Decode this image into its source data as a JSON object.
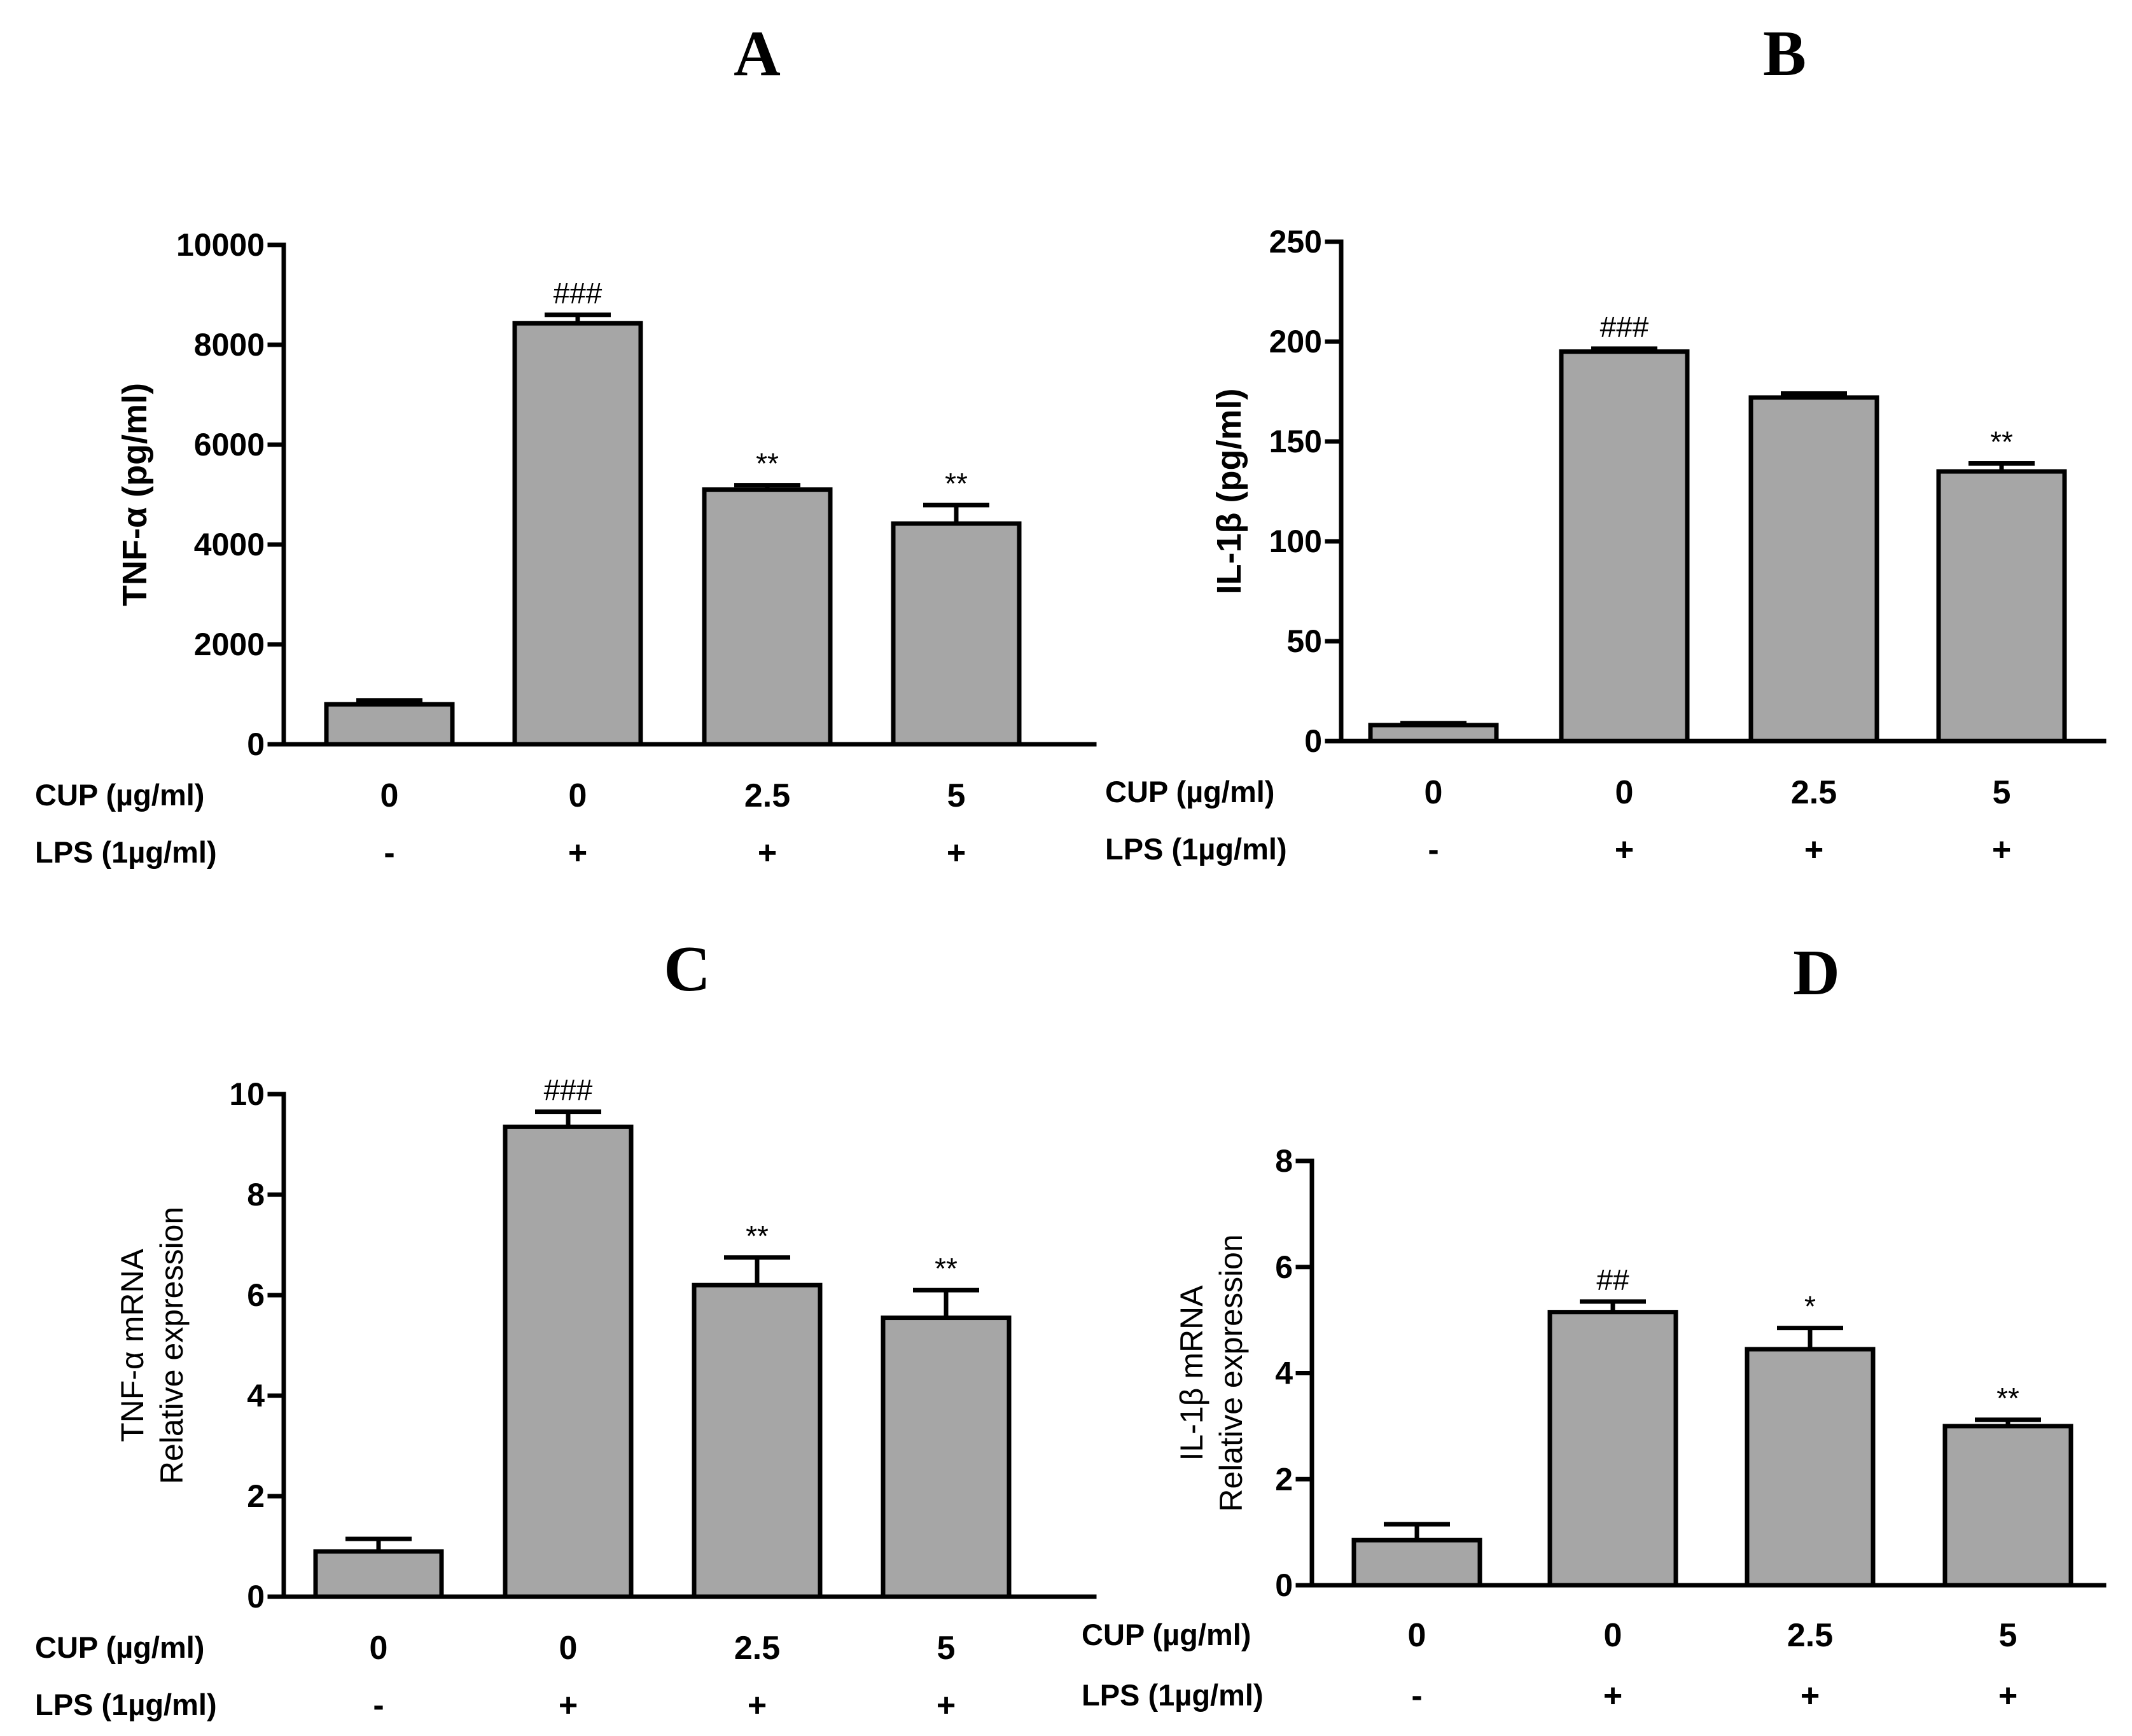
{
  "row_labels": {
    "cup": "CUP  (µg/ml)",
    "lps": "LPS (1µg/ml)"
  },
  "chart_data": [
    {
      "panel": "A",
      "type": "bar",
      "ylabel": "TNF-α (pg/ml)",
      "ylabel_lines": [
        "TNF-α (pg/ml)"
      ],
      "ylim": [
        0,
        10000
      ],
      "yticks": [
        0,
        2000,
        4000,
        6000,
        8000,
        10000
      ],
      "cup": [
        "0",
        "0",
        "2.5",
        "5"
      ],
      "lps": [
        "-",
        "+",
        "+",
        "+"
      ],
      "values": [
        800,
        8430,
        5100,
        4420
      ],
      "errors": [
        80,
        170,
        90,
        370
      ],
      "significance": [
        "",
        "###",
        "**",
        "**"
      ]
    },
    {
      "panel": "B",
      "type": "bar",
      "ylabel": "IL-1β (pg/ml)",
      "ylabel_lines": [
        "IL-1β (pg/ml)"
      ],
      "ylim": [
        0,
        250
      ],
      "yticks": [
        0,
        50,
        100,
        150,
        200,
        250
      ],
      "cup": [
        "0",
        "0",
        "2.5",
        "5"
      ],
      "lps": [
        "-",
        "+",
        "+",
        "+"
      ],
      "values": [
        8,
        195,
        172,
        135
      ],
      "errors": [
        1,
        1.5,
        2,
        4
      ],
      "significance": [
        "",
        "###",
        "",
        "**"
      ]
    },
    {
      "panel": "C",
      "type": "bar",
      "ylabel": "TNF-α mRNA Relative expression",
      "ylabel_lines": [
        "TNF-α mRNA",
        "Relative expression"
      ],
      "ylim": [
        0,
        10
      ],
      "yticks": [
        0,
        2,
        4,
        6,
        8,
        10
      ],
      "cup": [
        "0",
        "0",
        "2.5",
        "5"
      ],
      "lps": [
        "-",
        "+",
        "+",
        "+"
      ],
      "values": [
        0.9,
        9.35,
        6.2,
        5.55
      ],
      "errors": [
        0.25,
        0.3,
        0.55,
        0.55
      ],
      "significance": [
        "",
        "###",
        "**",
        "**"
      ]
    },
    {
      "panel": "D",
      "type": "bar",
      "ylabel": "IL-1β mRNA Relative expression",
      "ylabel_lines": [
        "IL-1β mRNA",
        "Relative expression"
      ],
      "ylim": [
        0,
        8
      ],
      "yticks": [
        0,
        2,
        4,
        6,
        8
      ],
      "cup": [
        "0",
        "0",
        "2.5",
        "5"
      ],
      "lps": [
        "-",
        "+",
        "+",
        "+"
      ],
      "values": [
        0.85,
        5.15,
        4.45,
        3.0
      ],
      "errors": [
        0.3,
        0.2,
        0.4,
        0.12
      ],
      "significance": [
        "",
        "##",
        "*",
        "**"
      ]
    }
  ]
}
